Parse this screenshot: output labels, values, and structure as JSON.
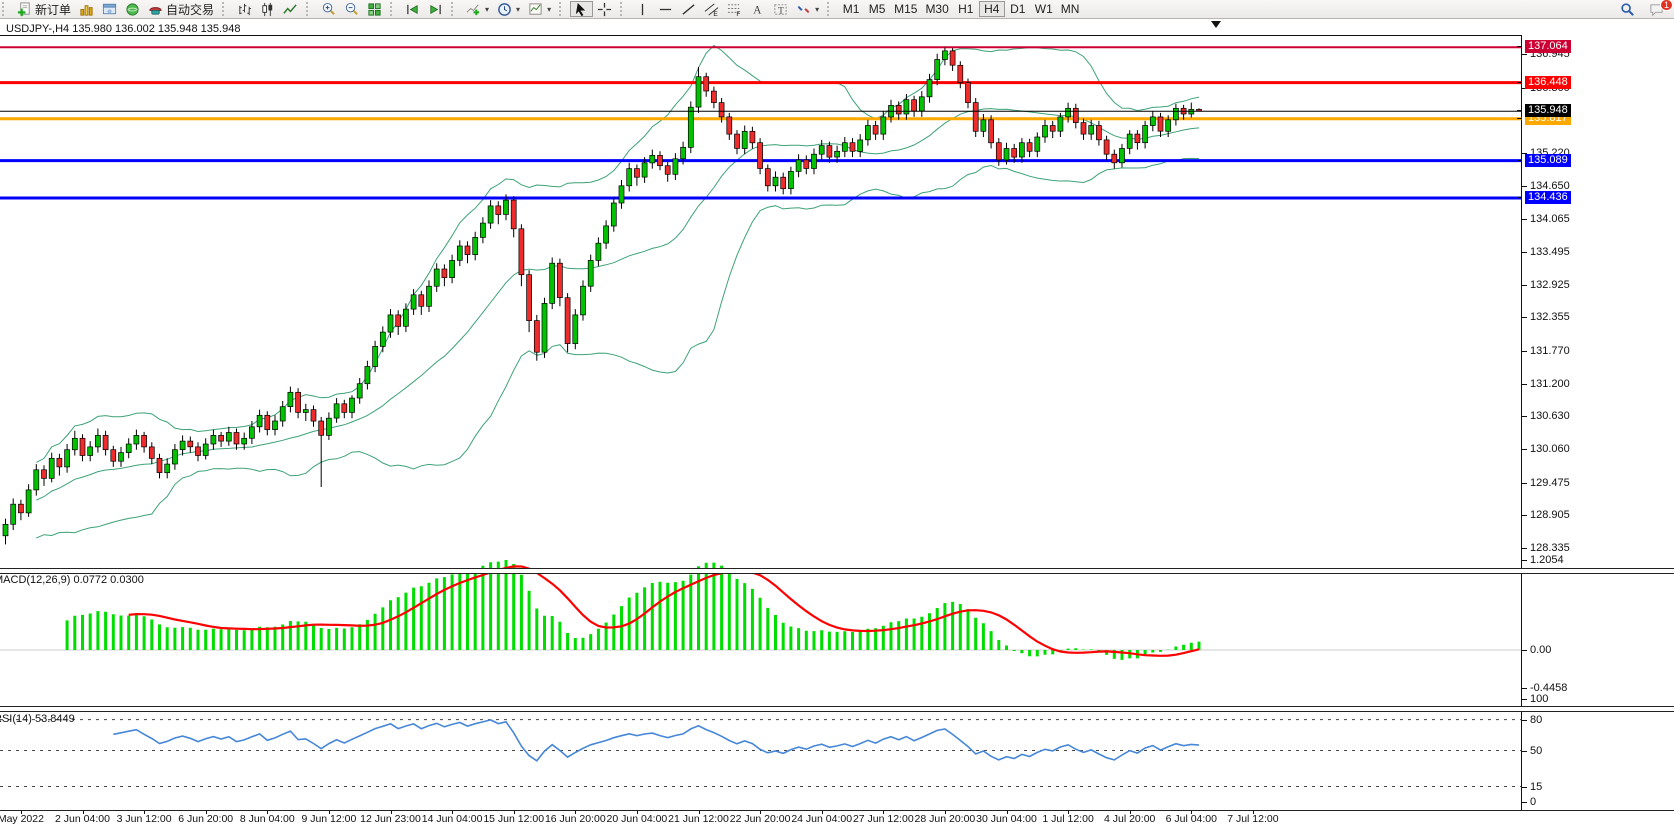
{
  "toolbar": {
    "new_order_label": "新订单",
    "autotrading_label": "自动交易",
    "notification_badge": "1",
    "timeframes": [
      {
        "label": "M1",
        "active": false
      },
      {
        "label": "M5",
        "active": false
      },
      {
        "label": "M15",
        "active": false
      },
      {
        "label": "M30",
        "active": false
      },
      {
        "label": "H1",
        "active": false
      },
      {
        "label": "H4",
        "active": true
      },
      {
        "label": "D1",
        "active": false
      },
      {
        "label": "W1",
        "active": false
      },
      {
        "label": "MN",
        "active": false
      }
    ]
  },
  "chart": {
    "title": "USDJPY-,H4  135.980 136.002 135.948 135.948",
    "symbol": "USDJPY-",
    "period": "H4"
  },
  "chart_data": {
    "type": "candlestick",
    "symbol": "USDJPY-",
    "timeframe": "H4",
    "bull_color": "#00c200",
    "bear_color": "#ee2c2c",
    "wick_color": "#000000",
    "candles": [
      [
        128.55,
        128.85,
        128.4,
        128.75
      ],
      [
        128.75,
        129.2,
        128.65,
        129.1
      ],
      [
        129.1,
        129.18,
        128.82,
        128.95
      ],
      [
        128.95,
        129.45,
        128.88,
        129.35
      ],
      [
        129.35,
        129.8,
        129.25,
        129.7
      ],
      [
        129.7,
        129.78,
        129.42,
        129.55
      ],
      [
        129.55,
        130.0,
        129.48,
        129.9
      ],
      [
        129.9,
        129.98,
        129.6,
        129.75
      ],
      [
        129.75,
        130.15,
        129.65,
        130.05
      ],
      [
        130.05,
        130.38,
        129.95,
        130.25
      ],
      [
        130.25,
        130.32,
        129.85,
        129.95
      ],
      [
        129.95,
        130.2,
        129.85,
        130.1
      ],
      [
        130.1,
        130.42,
        130.0,
        130.3
      ],
      [
        130.3,
        130.38,
        129.95,
        130.05
      ],
      [
        130.05,
        130.12,
        129.75,
        129.85
      ],
      [
        129.85,
        130.1,
        129.75,
        130.0
      ],
      [
        130.0,
        130.25,
        129.9,
        130.15
      ],
      [
        130.15,
        130.4,
        130.05,
        130.3
      ],
      [
        130.3,
        130.36,
        130.0,
        130.1
      ],
      [
        130.1,
        130.18,
        129.8,
        129.9
      ],
      [
        129.9,
        129.98,
        129.55,
        129.65
      ],
      [
        129.65,
        129.9,
        129.55,
        129.8
      ],
      [
        129.8,
        130.15,
        129.7,
        130.05
      ],
      [
        130.05,
        130.3,
        129.95,
        130.2
      ],
      [
        130.2,
        130.28,
        130.0,
        130.1
      ],
      [
        130.1,
        130.18,
        129.85,
        129.95
      ],
      [
        129.95,
        130.25,
        129.88,
        130.15
      ],
      [
        130.15,
        130.4,
        130.05,
        130.3
      ],
      [
        130.3,
        130.36,
        130.1,
        130.2
      ],
      [
        130.2,
        130.45,
        130.12,
        130.35
      ],
      [
        130.35,
        130.42,
        130.05,
        130.15
      ],
      [
        130.15,
        130.35,
        130.05,
        130.25
      ],
      [
        130.25,
        130.55,
        130.15,
        130.45
      ],
      [
        130.45,
        130.75,
        130.35,
        130.65
      ],
      [
        130.65,
        130.72,
        130.3,
        130.4
      ],
      [
        130.4,
        130.65,
        130.3,
        130.55
      ],
      [
        130.55,
        130.9,
        130.45,
        130.8
      ],
      [
        130.8,
        131.15,
        130.7,
        131.05
      ],
      [
        131.05,
        131.12,
        130.6,
        130.7
      ],
      [
        130.7,
        130.85,
        130.55,
        130.75
      ],
      [
        130.75,
        130.82,
        130.45,
        130.55
      ],
      [
        130.55,
        130.62,
        129.4,
        130.3
      ],
      [
        130.3,
        130.7,
        130.22,
        130.6
      ],
      [
        130.6,
        130.95,
        130.52,
        130.85
      ],
      [
        130.85,
        130.92,
        130.6,
        130.7
      ],
      [
        130.7,
        131.0,
        130.6,
        130.95
      ],
      [
        130.95,
        131.3,
        130.85,
        131.2
      ],
      [
        131.2,
        131.6,
        131.1,
        131.5
      ],
      [
        131.5,
        131.95,
        131.4,
        131.85
      ],
      [
        131.85,
        132.2,
        131.75,
        132.1
      ],
      [
        132.1,
        132.5,
        132.0,
        132.4
      ],
      [
        132.4,
        132.48,
        132.05,
        132.2
      ],
      [
        132.2,
        132.6,
        132.1,
        132.5
      ],
      [
        132.5,
        132.85,
        132.4,
        132.75
      ],
      [
        132.75,
        132.82,
        132.4,
        132.55
      ],
      [
        132.55,
        133.0,
        132.45,
        132.9
      ],
      [
        132.9,
        133.3,
        132.8,
        133.2
      ],
      [
        133.2,
        133.28,
        132.9,
        133.05
      ],
      [
        133.05,
        133.45,
        132.95,
        133.35
      ],
      [
        133.35,
        133.7,
        133.25,
        133.6
      ],
      [
        133.6,
        133.68,
        133.3,
        133.45
      ],
      [
        133.45,
        133.85,
        133.35,
        133.75
      ],
      [
        133.75,
        134.1,
        133.65,
        134.0
      ],
      [
        134.0,
        134.4,
        133.9,
        134.3
      ],
      [
        134.3,
        134.38,
        133.98,
        134.15
      ],
      [
        134.15,
        134.5,
        134.05,
        134.4
      ],
      [
        134.4,
        134.47,
        133.75,
        133.9
      ],
      [
        133.9,
        133.98,
        132.9,
        133.1
      ],
      [
        133.1,
        133.18,
        132.1,
        132.3
      ],
      [
        132.3,
        132.4,
        131.6,
        131.75
      ],
      [
        131.75,
        132.7,
        131.65,
        132.6
      ],
      [
        132.6,
        133.4,
        132.5,
        133.3
      ],
      [
        133.3,
        133.38,
        132.55,
        132.7
      ],
      [
        132.7,
        132.78,
        131.75,
        131.9
      ],
      [
        131.9,
        132.5,
        131.8,
        132.4
      ],
      [
        132.4,
        133.0,
        132.3,
        132.9
      ],
      [
        132.9,
        133.45,
        132.8,
        133.35
      ],
      [
        133.35,
        133.75,
        133.25,
        133.65
      ],
      [
        133.65,
        134.05,
        133.55,
        133.95
      ],
      [
        133.95,
        134.45,
        133.85,
        134.35
      ],
      [
        134.35,
        134.75,
        134.25,
        134.65
      ],
      [
        134.65,
        135.05,
        134.55,
        134.95
      ],
      [
        134.95,
        135.02,
        134.65,
        134.8
      ],
      [
        134.8,
        135.15,
        134.7,
        135.05
      ],
      [
        135.05,
        135.28,
        134.95,
        135.18
      ],
      [
        135.18,
        135.25,
        134.92,
        135.0
      ],
      [
        135.0,
        135.08,
        134.72,
        134.85
      ],
      [
        134.85,
        135.22,
        134.75,
        135.12
      ],
      [
        135.12,
        135.42,
        135.02,
        135.32
      ],
      [
        135.32,
        136.12,
        135.22,
        136.02
      ],
      [
        136.02,
        136.72,
        135.92,
        136.55
      ],
      [
        136.55,
        136.62,
        136.2,
        136.3
      ],
      [
        136.3,
        136.38,
        136.0,
        136.1
      ],
      [
        136.1,
        136.18,
        135.75,
        135.85
      ],
      [
        135.85,
        135.92,
        135.45,
        135.55
      ],
      [
        135.55,
        135.62,
        135.2,
        135.3
      ],
      [
        135.3,
        135.7,
        135.2,
        135.6
      ],
      [
        135.6,
        135.68,
        135.3,
        135.4
      ],
      [
        135.4,
        135.48,
        134.85,
        134.95
      ],
      [
        134.95,
        135.02,
        134.55,
        134.65
      ],
      [
        134.65,
        134.9,
        134.55,
        134.8
      ],
      [
        134.8,
        134.88,
        134.5,
        134.6
      ],
      [
        134.6,
        134.98,
        134.5,
        134.9
      ],
      [
        134.9,
        135.2,
        134.8,
        135.1
      ],
      [
        135.1,
        135.18,
        134.85,
        134.95
      ],
      [
        134.95,
        135.3,
        134.85,
        135.2
      ],
      [
        135.2,
        135.45,
        135.1,
        135.35
      ],
      [
        135.35,
        135.42,
        135.05,
        135.15
      ],
      [
        135.15,
        135.35,
        135.05,
        135.25
      ],
      [
        135.25,
        135.5,
        135.15,
        135.4
      ],
      [
        135.4,
        135.48,
        135.15,
        135.25
      ],
      [
        135.25,
        135.55,
        135.15,
        135.45
      ],
      [
        135.45,
        135.8,
        135.35,
        135.7
      ],
      [
        135.7,
        135.78,
        135.45,
        135.55
      ],
      [
        135.55,
        135.95,
        135.45,
        135.85
      ],
      [
        135.85,
        136.15,
        135.75,
        136.05
      ],
      [
        136.05,
        136.12,
        135.8,
        135.9
      ],
      [
        135.9,
        136.25,
        135.8,
        136.15
      ],
      [
        136.15,
        136.22,
        135.85,
        135.95
      ],
      [
        135.95,
        136.3,
        135.85,
        136.2
      ],
      [
        136.2,
        136.6,
        136.1,
        136.5
      ],
      [
        136.5,
        136.95,
        136.4,
        136.85
      ],
      [
        136.85,
        137.06,
        136.75,
        137.0
      ],
      [
        137.0,
        137.05,
        136.65,
        136.75
      ],
      [
        136.75,
        136.82,
        136.35,
        136.45
      ],
      [
        136.45,
        136.52,
        136.0,
        136.1
      ],
      [
        136.1,
        136.18,
        135.5,
        135.6
      ],
      [
        135.6,
        135.9,
        135.5,
        135.8
      ],
      [
        135.8,
        135.88,
        135.3,
        135.4
      ],
      [
        135.4,
        135.48,
        135.0,
        135.1
      ],
      [
        135.1,
        135.4,
        135.02,
        135.3
      ],
      [
        135.3,
        135.38,
        135.05,
        135.15
      ],
      [
        135.15,
        135.48,
        135.05,
        135.4
      ],
      [
        135.4,
        135.47,
        135.15,
        135.25
      ],
      [
        135.25,
        135.58,
        135.15,
        135.5
      ],
      [
        135.5,
        135.8,
        135.4,
        135.7
      ],
      [
        135.7,
        135.78,
        135.48,
        135.6
      ],
      [
        135.6,
        135.92,
        135.5,
        135.85
      ],
      [
        135.85,
        136.1,
        135.75,
        136.0
      ],
      [
        136.0,
        136.08,
        135.65,
        135.75
      ],
      [
        135.75,
        135.82,
        135.45,
        135.55
      ],
      [
        135.55,
        135.8,
        135.45,
        135.7
      ],
      [
        135.7,
        135.78,
        135.35,
        135.45
      ],
      [
        135.45,
        135.52,
        135.1,
        135.2
      ],
      [
        135.2,
        135.28,
        134.95,
        135.05
      ],
      [
        135.05,
        135.38,
        134.97,
        135.3
      ],
      [
        135.3,
        135.62,
        135.2,
        135.55
      ],
      [
        135.55,
        135.62,
        135.28,
        135.4
      ],
      [
        135.4,
        135.78,
        135.3,
        135.7
      ],
      [
        135.7,
        135.95,
        135.6,
        135.85
      ],
      [
        135.85,
        135.92,
        135.5,
        135.6
      ],
      [
        135.6,
        135.88,
        135.5,
        135.8
      ],
      [
        135.8,
        136.08,
        135.7,
        136.0
      ],
      [
        136.0,
        136.06,
        135.8,
        135.9
      ],
      [
        135.9,
        136.1,
        135.84,
        135.98
      ],
      [
        135.98,
        136.002,
        135.948,
        135.948
      ]
    ],
    "hlines": [
      {
        "price": 137.064,
        "label": "137.064",
        "color": "#cc0033",
        "width": 2
      },
      {
        "price": 136.448,
        "label": "136.448",
        "color": "#fe0000",
        "width": 3
      },
      {
        "price": 135.817,
        "label": "135.817",
        "color": "#ffa800",
        "width": 3
      },
      {
        "price": 135.089,
        "label": "135.089",
        "color": "#0000fe",
        "width": 3
      },
      {
        "price": 134.436,
        "label": "134.436",
        "color": "#0000fe",
        "width": 3
      }
    ],
    "current_price": {
      "price": 135.948,
      "label": "135.948",
      "color": "#000000"
    },
    "y_axis": {
      "min": 128.32,
      "max": 137.26,
      "ticks": [
        136.945,
        136.36,
        135.22,
        134.65,
        134.065,
        133.495,
        132.925,
        132.355,
        131.77,
        131.2,
        130.63,
        130.06,
        129.475,
        128.905,
        128.335
      ]
    },
    "x_axis": {
      "month_label": {
        "text": "May 2022",
        "bar": 2
      },
      "labels": [
        {
          "text": "2 Jun 04:00",
          "bar": 10
        },
        {
          "text": "3 Jun 12:00",
          "bar": 18
        },
        {
          "text": "6 Jun 20:00",
          "bar": 26
        },
        {
          "text": "8 Jun 04:00",
          "bar": 34
        },
        {
          "text": "9 Jun 12:00",
          "bar": 42
        },
        {
          "text": "12 Jun 23:00",
          "bar": 50
        },
        {
          "text": "14 Jun 04:00",
          "bar": 58
        },
        {
          "text": "15 Jun 12:00",
          "bar": 66
        },
        {
          "text": "16 Jun 20:00",
          "bar": 74
        },
        {
          "text": "20 Jun 04:00",
          "bar": 82
        },
        {
          "text": "21 Jun 12:00",
          "bar": 90
        },
        {
          "text": "22 Jun 20:00",
          "bar": 98
        },
        {
          "text": "24 Jun 04:00",
          "bar": 106
        },
        {
          "text": "27 Jun 12:00",
          "bar": 114
        },
        {
          "text": "28 Jun 20:00",
          "bar": 122
        },
        {
          "text": "30 Jun 04:00",
          "bar": 130
        },
        {
          "text": "1 Jul 12:00",
          "bar": 138
        },
        {
          "text": "4 Jul 20:00",
          "bar": 146
        },
        {
          "text": "6 Jul 04:00",
          "bar": 154
        },
        {
          "text": "7 Jul 12:00",
          "bar": 162
        }
      ]
    },
    "indicators": {
      "bollinger": {
        "period": 20,
        "deviation": 2,
        "color": "#3da277"
      },
      "macd": {
        "label": "MACD(12,26,9) 0.0772 0.0300",
        "fast": 12,
        "slow": 26,
        "signal": 9,
        "value": "0.0772",
        "signal_value": "0.0300",
        "hist_color": "#00dd00",
        "signal_color": "#fe0000",
        "scale_labels": [
          {
            "text": "1.2054",
            "value": 1.2054
          },
          {
            "text": "0.00",
            "value": 0
          },
          {
            "text": "-0.4458",
            "value": -0.4458
          }
        ]
      },
      "rsi": {
        "label": "RSI(14) 53.8449",
        "period": 14,
        "value": "53.8449",
        "color": "#4687d7",
        "levels": [
          80,
          50,
          15
        ],
        "scale_labels": [
          {
            "text": "100",
            "value": 100
          },
          {
            "text": "80",
            "value": 80
          },
          {
            "text": "50",
            "value": 50
          },
          {
            "text": "15",
            "value": 15
          },
          {
            "text": "0",
            "value": 0
          }
        ]
      }
    }
  }
}
